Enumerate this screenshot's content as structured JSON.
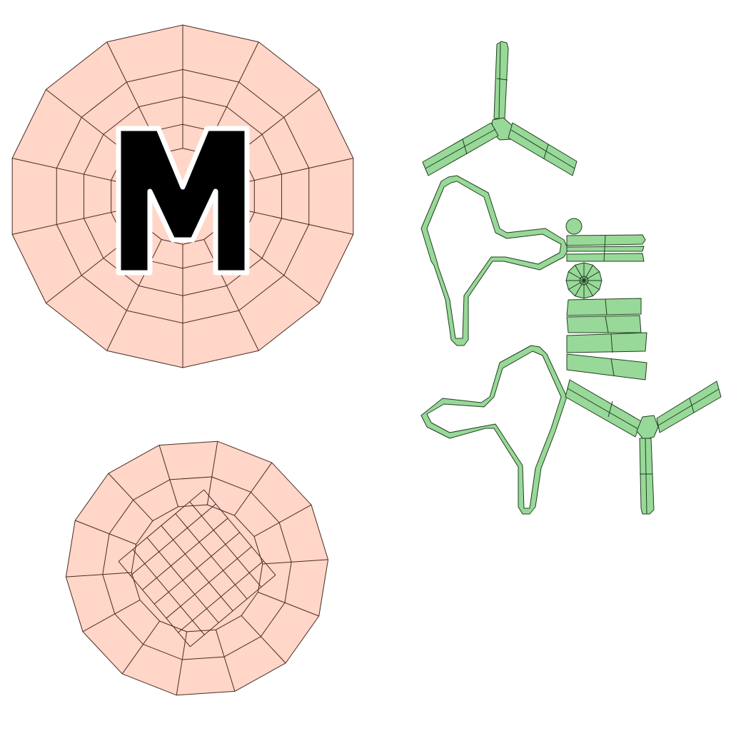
{
  "logo": {
    "letter": "M"
  },
  "colors": {
    "peach_fill": "#ffd6c8",
    "peach_wire": "#4a2a22",
    "green_fill": "#98d898",
    "green_wire": "#1f3f1f",
    "logo_fill": "#000000",
    "logo_outline": "#ffffff",
    "background": "#ffffff"
  },
  "islands": {
    "top_disc": "uv-island",
    "bottom_disc": "uv-island",
    "green_shells": "uv-island"
  }
}
